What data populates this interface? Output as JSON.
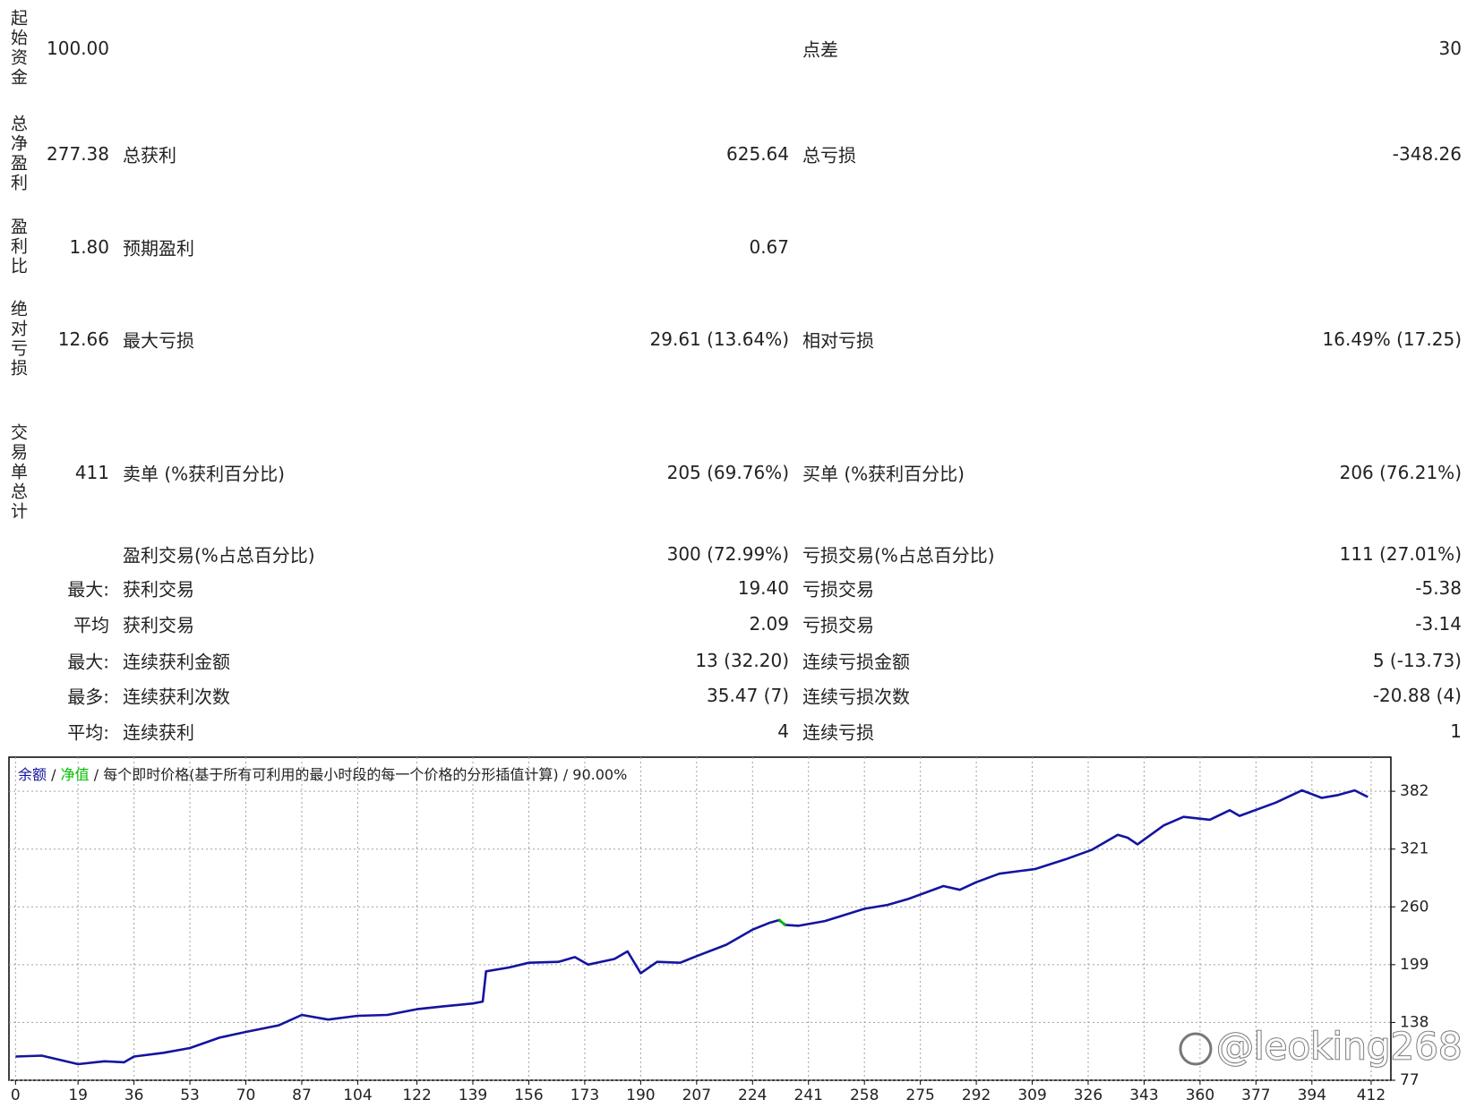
{
  "report": {
    "summary": [
      {
        "label": "起始资金",
        "value": "100.00",
        "label3": "点差",
        "value3": "30"
      },
      {
        "label": "总净盈利",
        "value": "277.38",
        "label2": "总获利",
        "value2": "625.64",
        "label3": "总亏损",
        "value3": "-348.26"
      },
      {
        "label": "盈利比",
        "value": "1.80",
        "label2": "预期盈利",
        "value2": "0.67"
      },
      {
        "label": "绝对亏损",
        "value": "12.66",
        "label2": "最大亏损",
        "value2": "29.61 (13.64%)",
        "label3": "相对亏损",
        "value3": "16.49% (17.25)"
      },
      {
        "label": "交易单总计",
        "value": "411",
        "label2": "卖单 (%获利百分比)",
        "value2": "205 (69.76%)",
        "label3": "买单 (%获利百分比)",
        "value3": "206 (76.21%)"
      }
    ],
    "details": [
      {
        "label2": "盈利交易(%占总百分比)",
        "value2": "300 (72.99%)",
        "label3": "亏损交易(%占总百分比)",
        "value3": "111 (27.01%)"
      },
      {
        "label": "最大:",
        "label2": "获利交易",
        "value2": "19.40",
        "label3": "亏损交易",
        "value3": "-5.38"
      },
      {
        "label": "平均",
        "label2": "获利交易",
        "value2": "2.09",
        "label3": "亏损交易",
        "value3": "-3.14"
      },
      {
        "label": "最大:",
        "label2": "连续获利金额",
        "value2": "13 (32.20)",
        "label3": "连续亏损金额",
        "value3": "5 (-13.73)"
      },
      {
        "label": "最多:",
        "label2": "连续获利次数",
        "value2": "35.47 (7)",
        "label3": "连续亏损次数",
        "value3": "-20.88 (4)"
      },
      {
        "label": "平均:",
        "label2": "连续获利",
        "value2": "4",
        "label3": "连续亏损",
        "value3": "1"
      }
    ]
  },
  "chart_data": {
    "type": "line",
    "mode": "每个即时价格(基于所有可利用的最小时段的每一个价格的分形插值计算)",
    "quality": "90.00%",
    "separator": "/",
    "watermark": "@leoking268",
    "x": [
      0,
      8,
      19,
      27,
      33,
      36,
      45,
      53,
      62,
      70,
      80,
      87,
      95,
      104,
      113,
      122,
      130,
      139,
      142,
      143,
      150,
      156,
      165,
      170,
      174,
      182,
      186,
      190,
      195,
      202,
      207,
      216,
      224,
      229,
      232,
      234,
      238,
      246,
      258,
      265,
      271,
      282,
      287,
      292,
      299,
      310,
      319,
      327,
      335,
      338,
      341,
      349,
      355,
      363,
      369,
      372,
      383,
      391,
      397,
      402,
      407,
      411
    ],
    "series": [
      {
        "name": "余额",
        "color": "#1414a0",
        "values": [
          102,
          103,
          94,
          97,
          96,
          102,
          106,
          111,
          122,
          128,
          135,
          146,
          141,
          145,
          146,
          152,
          155,
          158,
          160,
          192,
          196,
          201,
          202,
          207,
          199,
          205,
          213,
          190,
          202,
          201,
          208,
          220,
          236,
          243,
          246,
          241,
          240,
          245,
          258,
          262,
          268,
          282,
          278,
          286,
          295,
          300,
          310,
          320,
          336,
          333,
          326,
          346,
          355,
          352,
          362,
          356,
          370,
          383,
          375,
          378,
          383,
          376
        ]
      },
      {
        "name": "净值",
        "color": "#00c000",
        "values": [
          null,
          null,
          null,
          null,
          null,
          null,
          null,
          null,
          null,
          null,
          null,
          null,
          null,
          null,
          null,
          null,
          null,
          null,
          null,
          null,
          null,
          null,
          null,
          null,
          null,
          null,
          null,
          null,
          null,
          null,
          null,
          null,
          null,
          null,
          247,
          240,
          null,
          null,
          null,
          null,
          null,
          null,
          null,
          null,
          null,
          null,
          null,
          null,
          null,
          null,
          null,
          null,
          null,
          null,
          null,
          null,
          null,
          null,
          null,
          null,
          null,
          null
        ]
      }
    ],
    "xlim": [
      -2,
      418
    ],
    "ylim": [
      77,
      418
    ],
    "xticks": [
      0,
      19,
      36,
      53,
      70,
      87,
      104,
      122,
      139,
      156,
      173,
      190,
      207,
      224,
      241,
      258,
      275,
      292,
      309,
      326,
      343,
      360,
      377,
      394,
      412
    ],
    "yticks": [
      77,
      138,
      199,
      260,
      321,
      382
    ],
    "grid": true
  }
}
